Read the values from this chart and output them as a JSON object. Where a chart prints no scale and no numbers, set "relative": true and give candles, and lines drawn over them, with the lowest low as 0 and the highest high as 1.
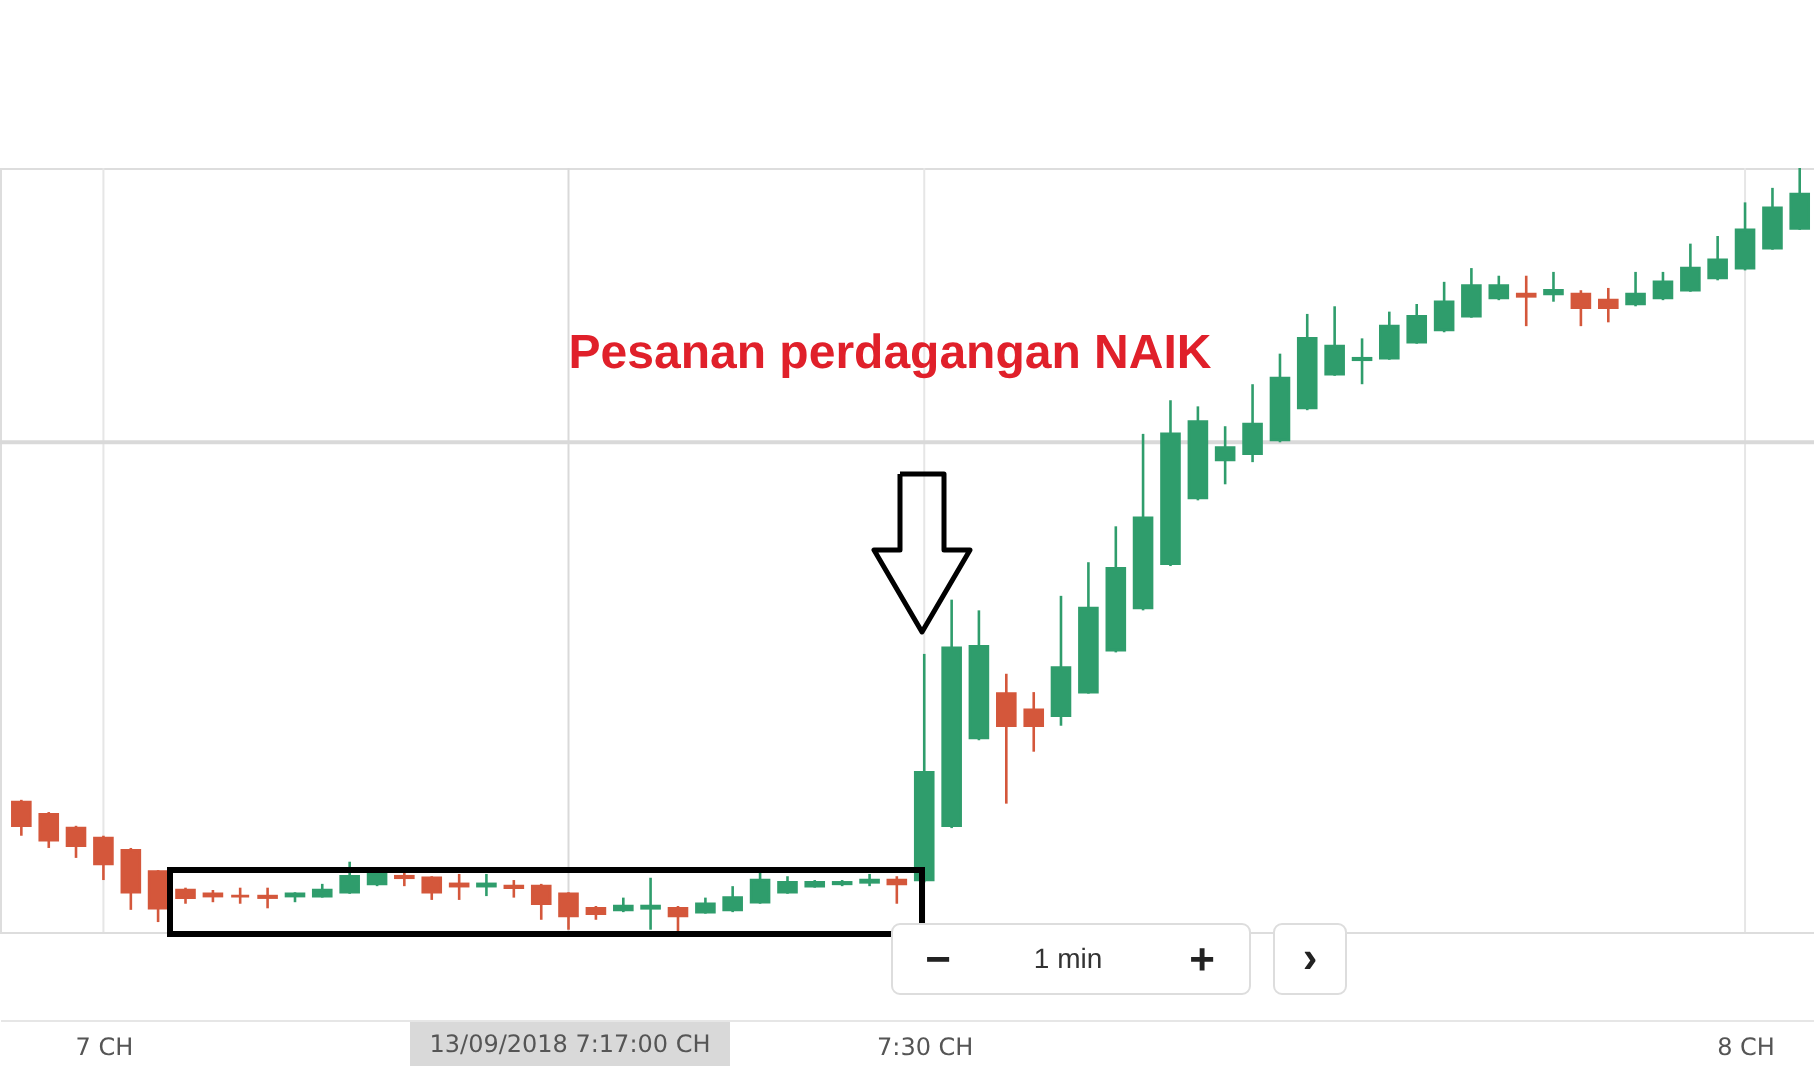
{
  "chart_data": {
    "type": "candlestick",
    "relative": true,
    "x": [
      6.95,
      6.9667,
      6.9833,
      7.0,
      7.0167,
      7.0333,
      7.05,
      7.0667,
      7.0833,
      7.1,
      7.1167,
      7.1333,
      7.15,
      7.1667,
      7.1833,
      7.2,
      7.2167,
      7.2333,
      7.25,
      7.2667,
      7.2833,
      7.3,
      7.3167,
      7.3333,
      7.35,
      7.3667,
      7.3833,
      7.4,
      7.4167,
      7.4333,
      7.45,
      7.4667,
      7.4833,
      7.5,
      7.5167,
      7.5333,
      7.55,
      7.5667,
      7.5833,
      7.6,
      7.6167,
      7.6333,
      7.65,
      7.6667,
      7.6833,
      7.7,
      7.7167,
      7.7333,
      7.75,
      7.7667,
      7.7833,
      7.8,
      7.8167,
      7.8333,
      7.85,
      7.8667,
      7.8833,
      7.9,
      7.9167,
      7.9333,
      7.95,
      7.9667,
      7.9833,
      8.0,
      8.0167,
      8.0333
    ],
    "ohlc": [
      [
        0.17,
        0.173,
        0.126,
        0.139
      ],
      [
        0.154,
        0.157,
        0.11,
        0.12
      ],
      [
        0.136,
        0.139,
        0.097,
        0.113
      ],
      [
        0.123,
        0.126,
        0.068,
        0.089
      ],
      [
        0.107,
        0.11,
        0.029,
        0.052
      ],
      [
        0.079,
        0.081,
        0.013,
        0.031
      ],
      [
        0.055,
        0.058,
        0.037,
        0.045
      ],
      [
        0.05,
        0.055,
        0.039,
        0.047
      ],
      [
        0.047,
        0.058,
        0.037,
        0.047
      ],
      [
        0.047,
        0.058,
        0.031,
        0.045
      ],
      [
        0.047,
        0.052,
        0.039,
        0.05
      ],
      [
        0.047,
        0.063,
        0.045,
        0.055
      ],
      [
        0.052,
        0.092,
        0.05,
        0.073
      ],
      [
        0.063,
        0.081,
        0.06,
        0.076
      ],
      [
        0.073,
        0.079,
        0.06,
        0.071
      ],
      [
        0.071,
        0.073,
        0.042,
        0.052
      ],
      [
        0.063,
        0.076,
        0.042,
        0.06
      ],
      [
        0.06,
        0.076,
        0.047,
        0.063
      ],
      [
        0.06,
        0.068,
        0.045,
        0.058
      ],
      [
        0.06,
        0.063,
        0.016,
        0.037
      ],
      [
        0.05,
        0.052,
        0.003,
        0.021
      ],
      [
        0.031,
        0.034,
        0.016,
        0.024
      ],
      [
        0.029,
        0.045,
        0.026,
        0.034
      ],
      [
        0.031,
        0.071,
        0.003,
        0.034
      ],
      [
        0.031,
        0.034,
        0,
        0.021
      ],
      [
        0.026,
        0.045,
        0.024,
        0.037
      ],
      [
        0.029,
        0.06,
        0.026,
        0.045
      ],
      [
        0.039,
        0.079,
        0.037,
        0.068
      ],
      [
        0.052,
        0.073,
        0.05,
        0.065
      ],
      [
        0.06,
        0.068,
        0.058,
        0.065
      ],
      [
        0.063,
        0.068,
        0.06,
        0.065
      ],
      [
        0.065,
        0.076,
        0.06,
        0.068
      ],
      [
        0.068,
        0.073,
        0.037,
        0.063
      ],
      [
        0.068,
        0.364,
        0.065,
        0.209
      ],
      [
        0.139,
        0.435,
        0.136,
        0.372
      ],
      [
        0.254,
        0.421,
        0.251,
        0.374
      ],
      [
        0.312,
        0.338,
        0.168,
        0.27
      ],
      [
        0.291,
        0.314,
        0.236,
        0.27
      ],
      [
        0.283,
        0.44,
        0.27,
        0.346
      ],
      [
        0.314,
        0.484,
        0.312,
        0.424
      ],
      [
        0.369,
        0.531,
        0.366,
        0.476
      ],
      [
        0.424,
        0.652,
        0.421,
        0.542
      ],
      [
        0.482,
        0.696,
        0.479,
        0.652
      ],
      [
        0.568,
        0.688,
        0.565,
        0.668
      ],
      [
        0.618,
        0.662,
        0.586,
        0.634
      ],
      [
        0.626,
        0.717,
        0.615,
        0.665
      ],
      [
        0.644,
        0.757,
        0.641,
        0.725
      ],
      [
        0.686,
        0.809,
        0.683,
        0.777
      ],
      [
        0.73,
        0.819,
        0.728,
        0.767
      ],
      [
        0.749,
        0.777,
        0.717,
        0.751
      ],
      [
        0.751,
        0.812,
        0.749,
        0.793
      ],
      [
        0.772,
        0.822,
        0.77,
        0.806
      ],
      [
        0.788,
        0.851,
        0.785,
        0.825
      ],
      [
        0.806,
        0.869,
        0.804,
        0.846
      ],
      [
        0.83,
        0.859,
        0.827,
        0.846
      ],
      [
        0.835,
        0.859,
        0.793,
        0.832
      ],
      [
        0.835,
        0.864,
        0.825,
        0.84
      ],
      [
        0.835,
        0.84,
        0.793,
        0.817
      ],
      [
        0.827,
        0.843,
        0.798,
        0.817
      ],
      [
        0.822,
        0.864,
        0.819,
        0.835
      ],
      [
        0.83,
        0.864,
        0.827,
        0.851
      ],
      [
        0.84,
        0.901,
        0.838,
        0.869
      ],
      [
        0.856,
        0.911,
        0.853,
        0.88
      ],
      [
        0.869,
        0.955,
        0.866,
        0.919
      ],
      [
        0.895,
        0.974,
        0.893,
        0.948
      ],
      [
        0.921,
        1,
        0.919,
        0.966
      ]
    ],
    "colors": [
      "#d4573b",
      "#d4573b",
      "#d4573b",
      "#d4573b",
      "#d4573b",
      "#d4573b",
      "#d4573b",
      "#d4573b",
      "#d4573b",
      "#d4573b",
      "#2f9d6c",
      "#2f9d6c",
      "#2f9d6c",
      "#2f9d6c",
      "#d4573b",
      "#d4573b",
      "#d4573b",
      "#2f9d6c",
      "#d4573b",
      "#d4573b",
      "#d4573b",
      "#d4573b",
      "#2f9d6c",
      "#2f9d6c",
      "#d4573b",
      "#2f9d6c",
      "#2f9d6c",
      "#2f9d6c",
      "#2f9d6c",
      "#2f9d6c",
      "#2f9d6c",
      "#2f9d6c",
      "#d4573b",
      "#2f9d6c",
      "#2f9d6c",
      "#2f9d6c",
      "#d4573b",
      "#d4573b",
      "#2f9d6c",
      "#2f9d6c",
      "#2f9d6c",
      "#2f9d6c",
      "#2f9d6c",
      "#2f9d6c",
      "#2f9d6c",
      "#2f9d6c",
      "#2f9d6c",
      "#2f9d6c",
      "#2f9d6c",
      "#2f9d6c",
      "#2f9d6c",
      "#2f9d6c",
      "#2f9d6c",
      "#2f9d6c",
      "#2f9d6c",
      "#d4573b",
      "#2f9d6c",
      "#d4573b",
      "#d4573b",
      "#2f9d6c",
      "#2f9d6c",
      "#2f9d6c",
      "#2f9d6c",
      "#2f9d6c",
      "#2f9d6c",
      "#2f9d6c"
    ],
    "xlim": [
      6.937,
      8.042
    ],
    "xticks": [
      {
        "value": 7,
        "label": "7 CH"
      },
      {
        "value": 7.5,
        "label": "7:30 CH"
      },
      {
        "value": 8,
        "label": "8 CH"
      }
    ],
    "grid": "x",
    "ref_lines": [
      {
        "axis": "x",
        "value": 7.2833,
        "label": null,
        "color": "#d9d9d9"
      },
      {
        "axis": "y",
        "value": 0.641,
        "label": null,
        "color": "#d9d9d9"
      }
    ],
    "annotations": [
      "Pesanan perdagangan NAIK",
      "1 min",
      "−",
      "+",
      "›",
      "13/09/2018 7:17:00 CH"
    ]
  }
}
